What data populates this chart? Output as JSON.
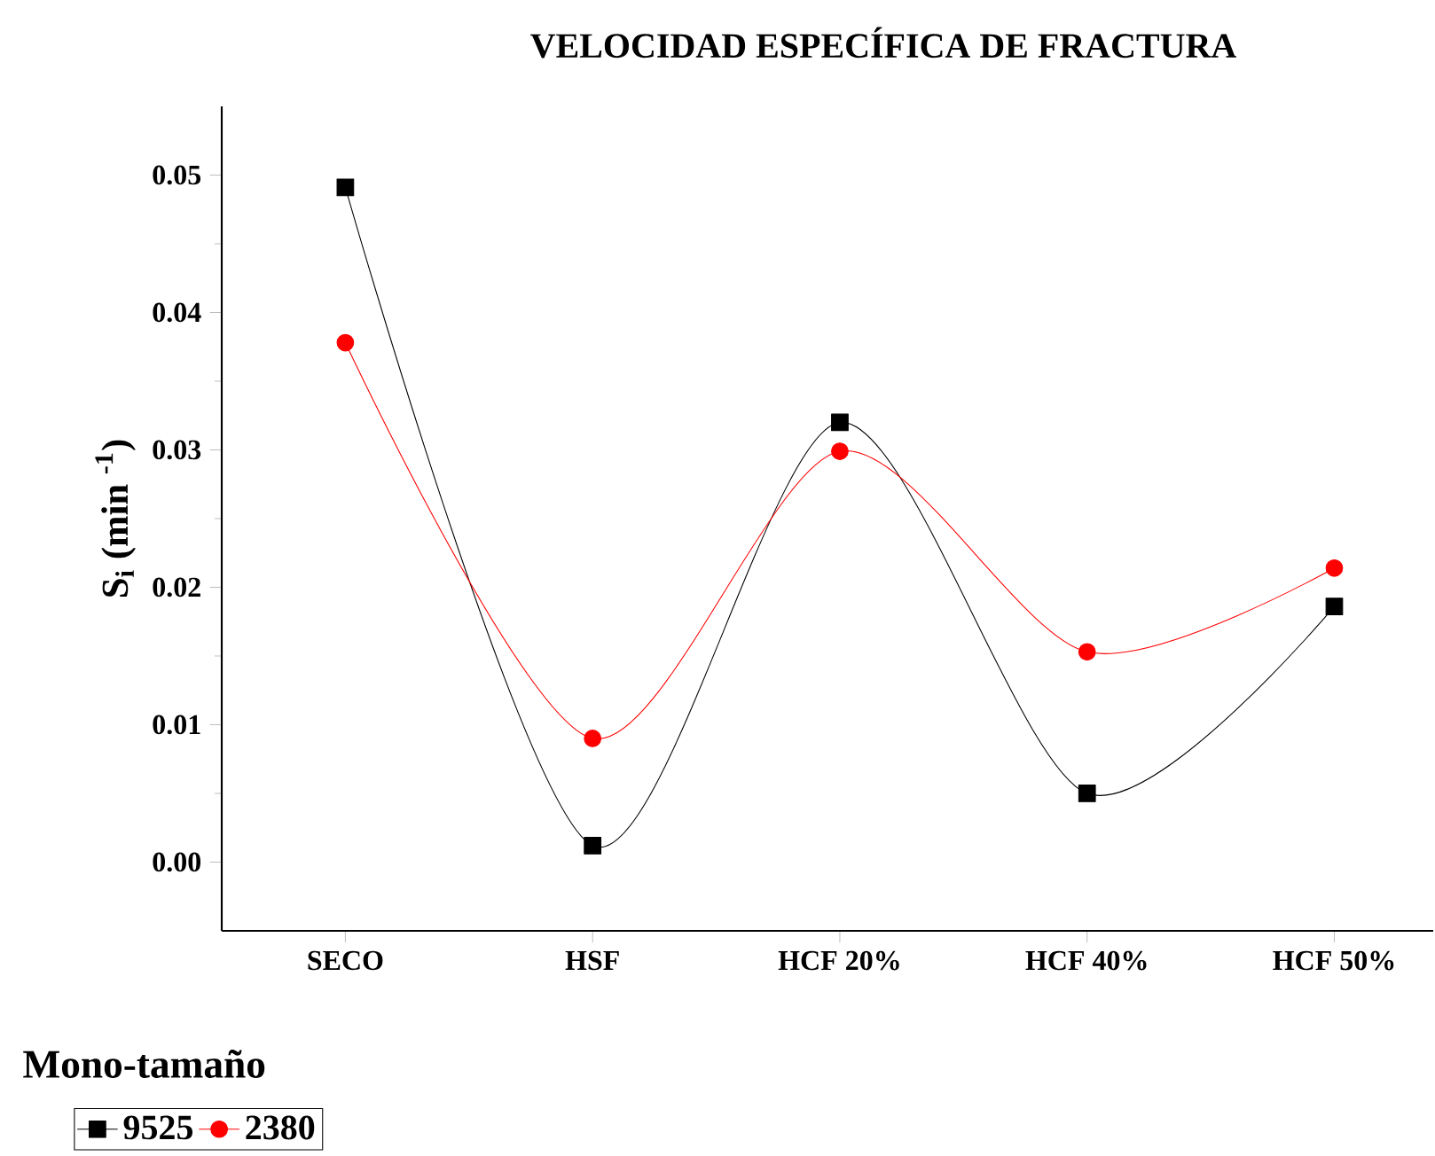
{
  "chart_data": {
    "type": "line",
    "title": "VELOCIDAD ESPECÍFICA DE FRACTURA",
    "ylabel": "S$_{i}$ (min $^{-1}$)",
    "legend_title": "Mono-tamaño",
    "categories": [
      "SECO",
      "HSF",
      "HCF 20%",
      "HCF 40%",
      "HCF 50%"
    ],
    "series": [
      {
        "name": "9525",
        "color": "#000000",
        "marker": "square",
        "values": [
          0.0491,
          0.0012,
          0.032,
          0.005,
          0.0186
        ]
      },
      {
        "name": "2380",
        "color": "#ff0000",
        "marker": "circle",
        "values": [
          0.0378,
          0.009,
          0.0299,
          0.0153,
          0.0214
        ]
      }
    ],
    "ylim": [
      -0.005,
      0.055
    ],
    "yticks": [
      {
        "value": 0,
        "label": "0.00"
      },
      {
        "value": 0.01,
        "label": "0.01"
      },
      {
        "value": 0.02,
        "label": "0.02"
      },
      {
        "value": 0.03,
        "label": "0.03"
      },
      {
        "value": 0.04,
        "label": "0.04"
      },
      {
        "value": 0.05,
        "label": "0.05"
      }
    ],
    "grid": false,
    "legend": "bottom left",
    "line_style": "solid"
  }
}
